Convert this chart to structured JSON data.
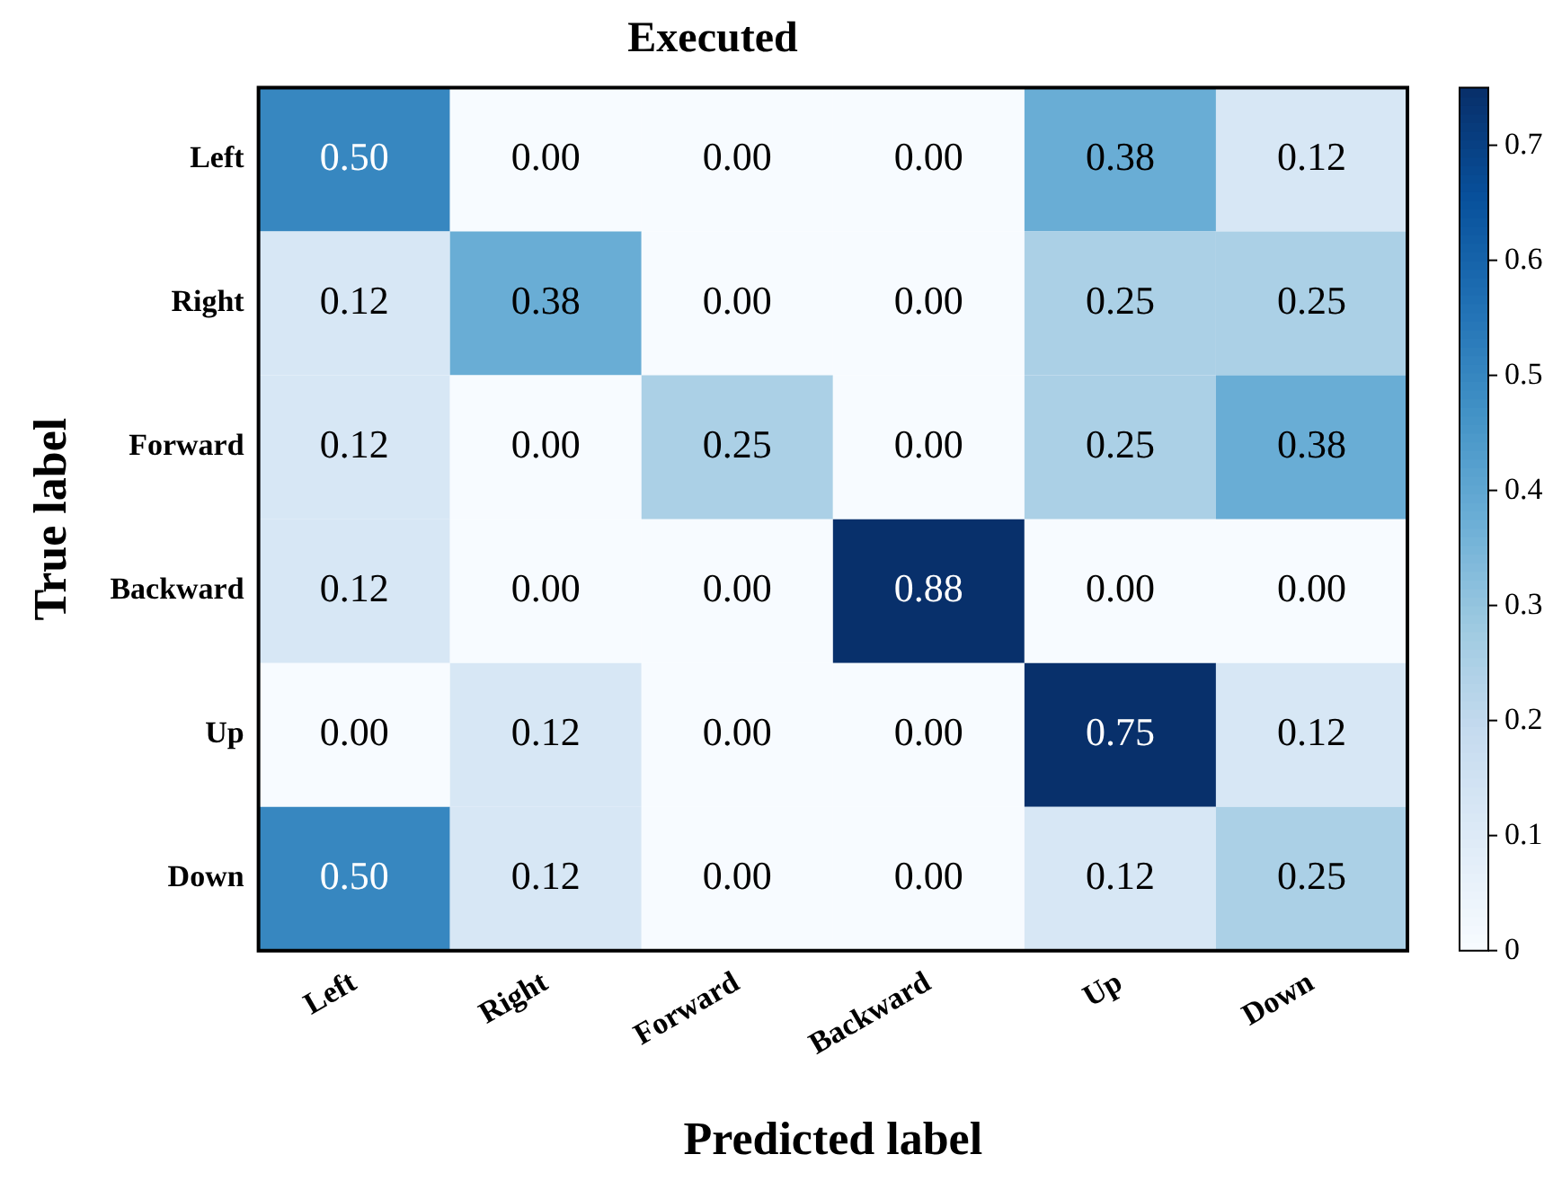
{
  "chart_data": {
    "type": "heatmap",
    "title": "Executed",
    "xlabel": "Predicted label",
    "ylabel": "True label",
    "categories": [
      "Left",
      "Right",
      "Forward",
      "Backward",
      "Up",
      "Down"
    ],
    "y_categories": [
      "Left",
      "Right",
      "Forward",
      "Backward",
      "Up",
      "Down"
    ],
    "cells": [
      [
        0.5,
        0.0,
        0.0,
        0.0,
        0.38,
        0.12
      ],
      [
        0.12,
        0.38,
        0.0,
        0.0,
        0.25,
        0.25
      ],
      [
        0.12,
        0.0,
        0.25,
        0.0,
        0.25,
        0.38
      ],
      [
        0.12,
        0.0,
        0.0,
        0.88,
        0.0,
        0.0
      ],
      [
        0.0,
        0.12,
        0.0,
        0.0,
        0.75,
        0.12
      ],
      [
        0.5,
        0.12,
        0.0,
        0.0,
        0.12,
        0.25
      ]
    ],
    "cell_labels": [
      [
        "0.50",
        "0.00",
        "0.00",
        "0.00",
        "0.38",
        "0.12"
      ],
      [
        "0.12",
        "0.38",
        "0.00",
        "0.00",
        "0.25",
        "0.25"
      ],
      [
        "0.12",
        "0.00",
        "0.25",
        "0.00",
        "0.25",
        "0.38"
      ],
      [
        "0.12",
        "0.00",
        "0.00",
        "0.88",
        "0.00",
        "0.00"
      ],
      [
        "0.00",
        "0.12",
        "0.00",
        "0.00",
        "0.75",
        "0.12"
      ],
      [
        "0.50",
        "0.12",
        "0.00",
        "0.00",
        "0.12",
        "0.25"
      ]
    ],
    "clim": [
      0,
      0.75
    ],
    "cticks": [
      0,
      0.1,
      0.2,
      0.3,
      0.4,
      0.5,
      0.6,
      0.7
    ]
  }
}
